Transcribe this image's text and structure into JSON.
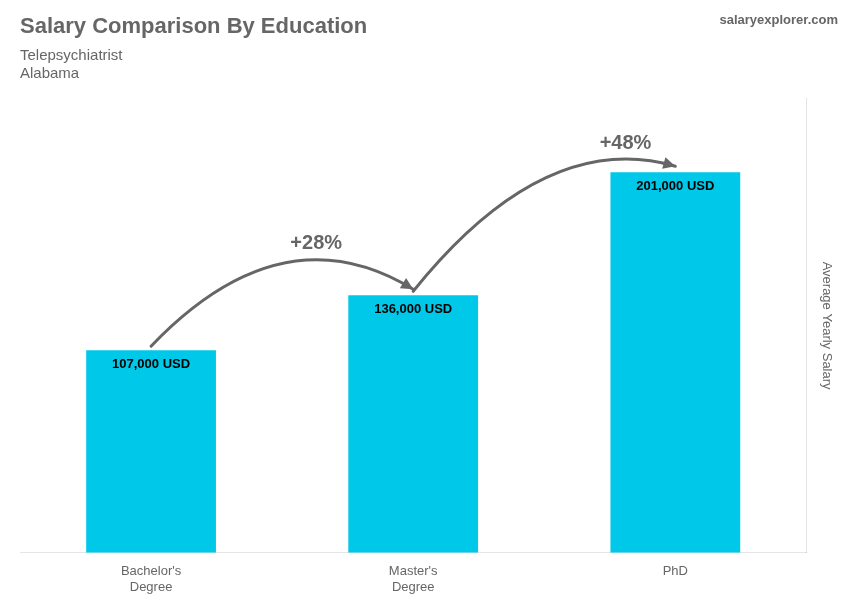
{
  "chart_data": {
    "type": "bar",
    "title": "Salary Comparison By Education",
    "subtitle": [
      "Telepsychiatrist",
      "Alabama"
    ],
    "ylabel": "Average Yearly Salary",
    "categories": [
      "Bachelor's\nDegree",
      "Master's\nDegree",
      "PhD"
    ],
    "values": [
      107000,
      136000,
      201000
    ],
    "value_labels": [
      "107,000 USD",
      "136,000 USD",
      "201,000 USD"
    ],
    "data_labels": true,
    "color": "#00c8e8",
    "ylim": [
      0,
      240000
    ],
    "grid": false,
    "tick_labels": "x",
    "annotations": [
      "+28%",
      "+48%"
    ],
    "source": "salaryexplorer.com"
  }
}
